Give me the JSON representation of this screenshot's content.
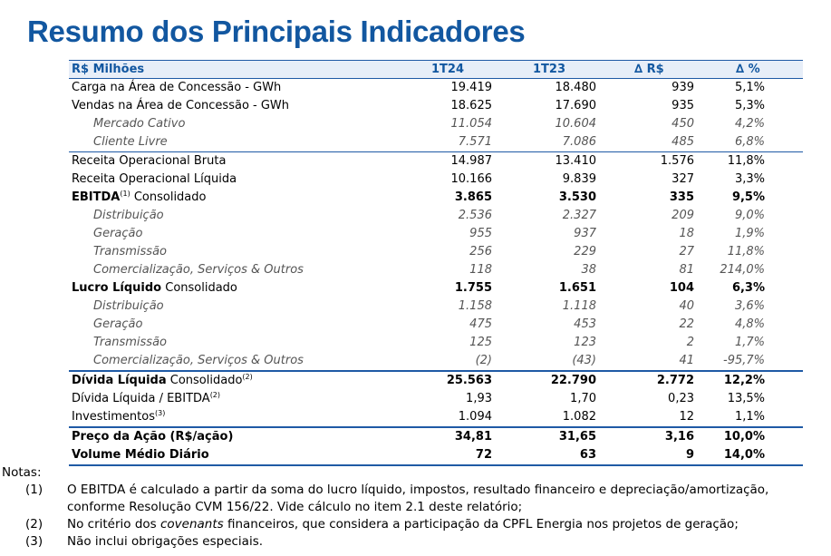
{
  "title": "Resumo dos Principais Indicadores",
  "header": [
    "R$ Milhões",
    "1T24",
    "1T23",
    "∆ R$",
    "∆ %"
  ],
  "rows": [
    {
      "label": "Carga na Área de Concessão - GWh",
      "v": [
        "19.419",
        "18.480",
        "939",
        "5,1%"
      ]
    },
    {
      "label": "Vendas na Área de Concessão - GWh",
      "v": [
        "18.625",
        "17.690",
        "935",
        "5,3%"
      ]
    },
    {
      "label": "Mercado Cativo",
      "v": [
        "11.054",
        "10.604",
        "450",
        "4,2%"
      ]
    },
    {
      "label": "Cliente Livre",
      "v": [
        "7.571",
        "7.086",
        "485",
        "6,8%"
      ]
    },
    {
      "label": "Receita Operacional Bruta",
      "v": [
        "14.987",
        "13.410",
        "1.576",
        "11,8%"
      ]
    },
    {
      "label": "Receita Operacional Líquida",
      "v": [
        "10.166",
        "9.839",
        "327",
        "3,3%"
      ]
    },
    {
      "label_bold": "EBITDA",
      "sup": "(1)",
      "label_rest": " Consolidado",
      "v": [
        "3.865",
        "3.530",
        "335",
        "9,5%"
      ]
    },
    {
      "label": "Distribuição",
      "v": [
        "2.536",
        "2.327",
        "209",
        "9,0%"
      ]
    },
    {
      "label": "Geração",
      "v": [
        "955",
        "937",
        "18",
        "1,9%"
      ]
    },
    {
      "label": "Transmissão",
      "v": [
        "256",
        "229",
        "27",
        "11,8%"
      ]
    },
    {
      "label": "Comercialização, Serviços & Outros",
      "v": [
        "118",
        "38",
        "81",
        "214,0%"
      ]
    },
    {
      "label_bold": "Lucro Líquido",
      "label_rest": " Consolidado",
      "v": [
        "1.755",
        "1.651",
        "104",
        "6,3%"
      ]
    },
    {
      "label": "Distribuição",
      "v": [
        "1.158",
        "1.118",
        "40",
        "3,6%"
      ]
    },
    {
      "label": "Geração",
      "v": [
        "475",
        "453",
        "22",
        "4,8%"
      ]
    },
    {
      "label": "Transmissão",
      "v": [
        "125",
        "123",
        "2",
        "1,7%"
      ]
    },
    {
      "label": "Comercialização, Serviços & Outros",
      "v": [
        "(2)",
        "(43)",
        "41",
        "-95,7%"
      ]
    },
    {
      "label_bold": "Dívida Líquida",
      "label_rest": " Consolidado",
      "sup": "(2)",
      "v": [
        "25.563",
        "22.790",
        "2.772",
        "12,2%"
      ]
    },
    {
      "label": "Dívida Líquida / EBITDA",
      "sup": "(2)",
      "v": [
        "1,93",
        "1,70",
        "0,23",
        "13,5%"
      ]
    },
    {
      "label": "Investimentos",
      "sup": "(3)",
      "v": [
        "1.094",
        "1.082",
        "12",
        "1,1%"
      ]
    },
    {
      "label_bold": "Preço da Ação",
      "label_rest": " (R$/ação)",
      "v": [
        "34,81",
        "31,65",
        "3,16",
        "10,0%"
      ]
    },
    {
      "label_bold": "Volume Médio Diário",
      "v": [
        "72",
        "63",
        "9",
        "14,0%"
      ]
    }
  ],
  "notes": {
    "heading": "Notas:",
    "items": [
      {
        "num": "(1)",
        "text": "O EBITDA é calculado a partir da soma do lucro líquido, impostos, resultado financeiro e depreciação/amortização, conforme Resolução CVM 156/22. Vide cálculo no item 2.1 deste relatório;"
      },
      {
        "num": "(2)",
        "text_before": "No critério dos ",
        "text_italic": "covenants",
        "text_after": " financeiros, que considera a participação da CPFL Energia nos projetos de geração;"
      },
      {
        "num": "(3)",
        "text": "Não inclui obrigações especiais."
      }
    ]
  }
}
